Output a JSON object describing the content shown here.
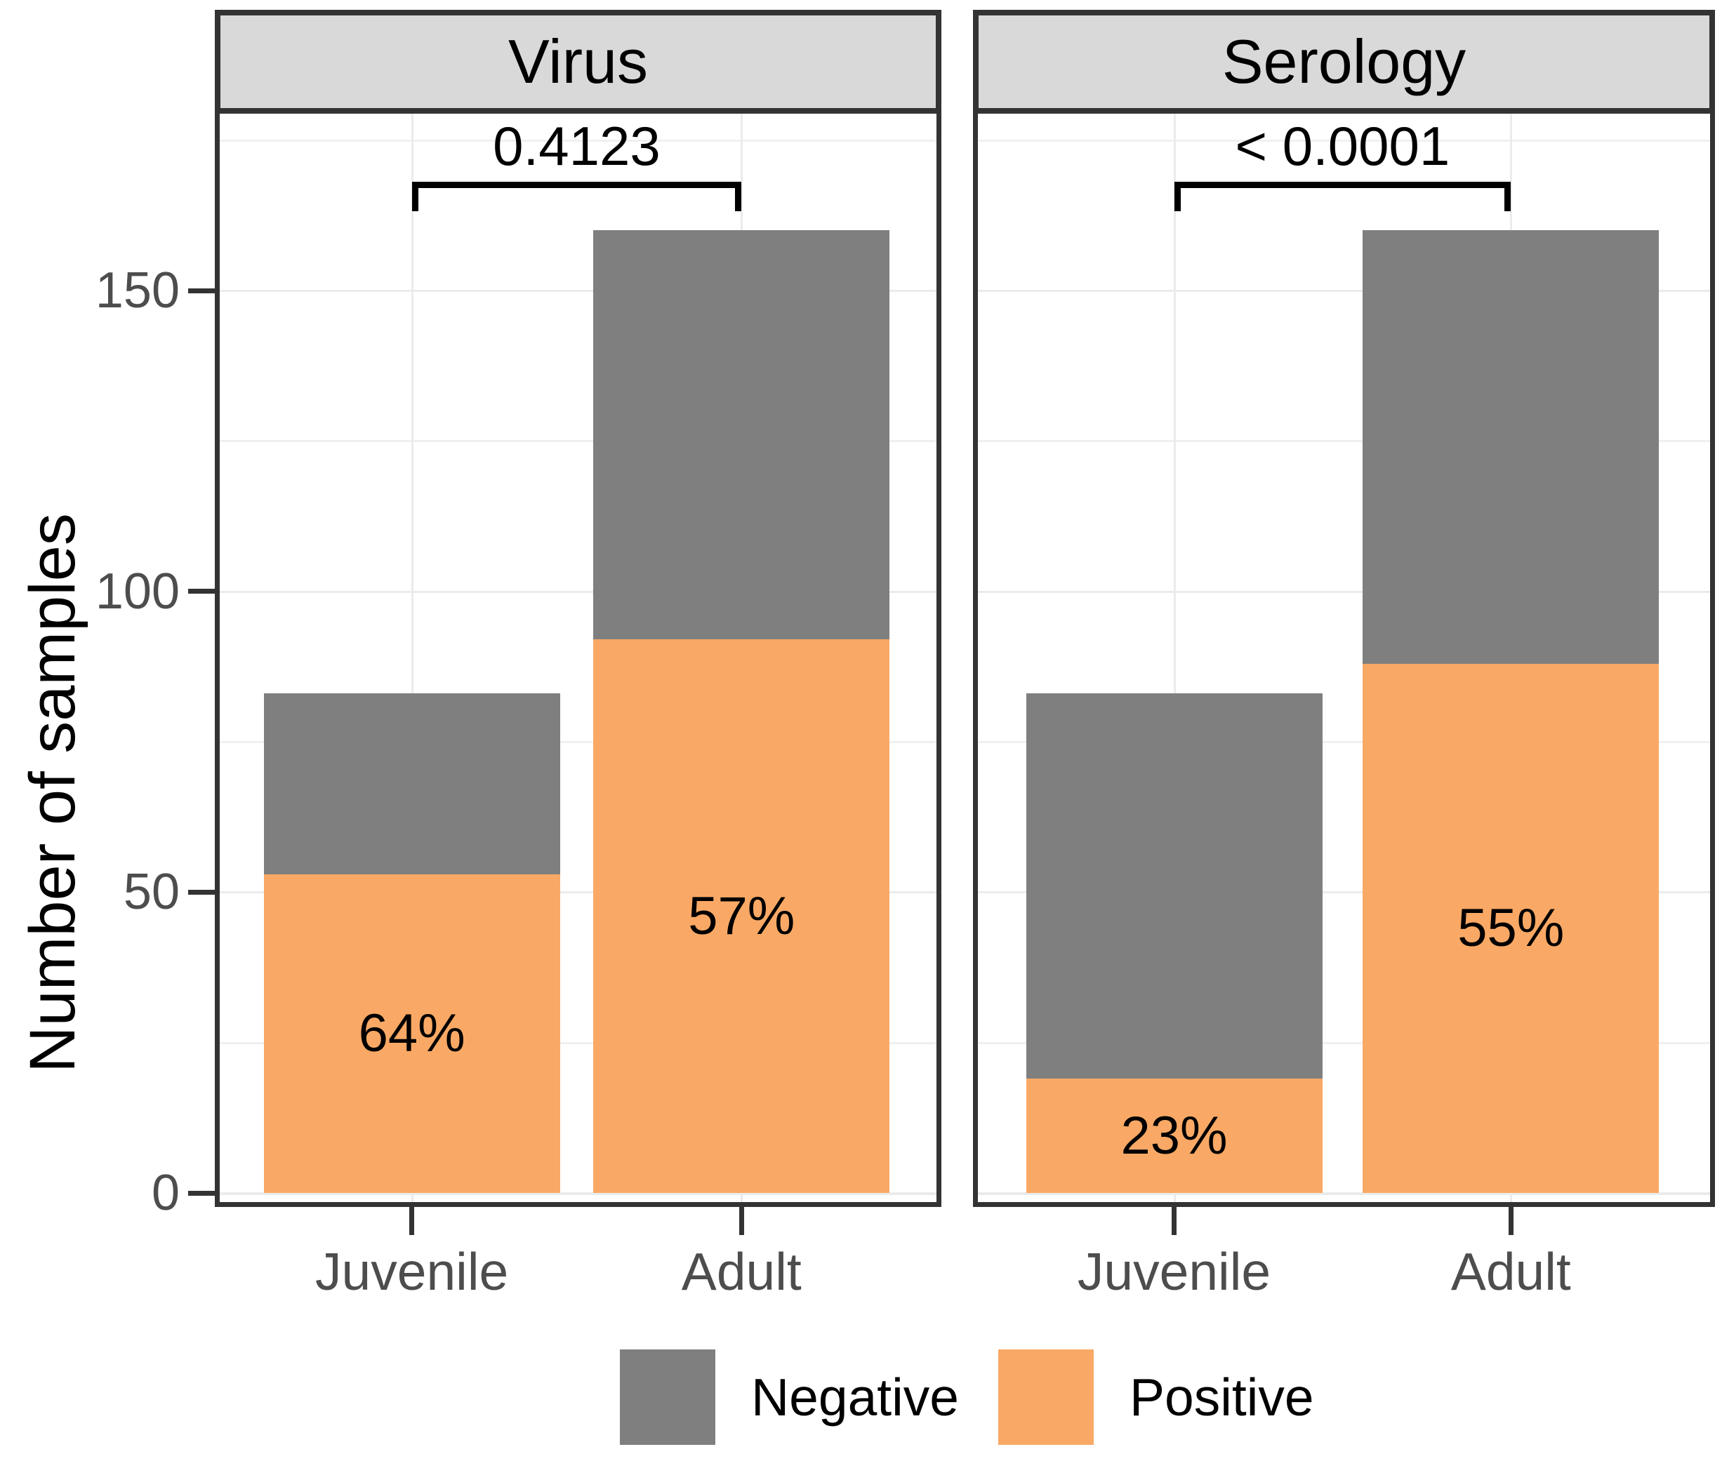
{
  "chart_data": {
    "type": "bar",
    "stacked": true,
    "orientation": "vertical",
    "ylabel": "Number of samples",
    "xlabel": "",
    "ylim": [
      0,
      179
    ],
    "yticks": [
      0,
      50,
      100,
      150
    ],
    "ytick_labels": [
      "0",
      "50",
      "100",
      "150"
    ],
    "yminor_ticks": [
      25,
      75,
      125,
      175
    ],
    "grid": true,
    "legend_position": "bottom",
    "legend": [
      {
        "label": "Negative",
        "color": "#7F7F7F"
      },
      {
        "label": "Positive",
        "color": "#F9A965"
      }
    ],
    "facets": [
      {
        "label": "Virus",
        "p_value": "0.4123",
        "categories": [
          "Juvenile",
          "Adult"
        ],
        "series": [
          {
            "name": "Positive",
            "values": [
              53,
              92
            ]
          },
          {
            "name": "Negative",
            "values": [
              30,
              68
            ]
          }
        ],
        "totals": [
          83,
          160
        ],
        "percent_labels": [
          "64%",
          "57%"
        ]
      },
      {
        "label": "Serology",
        "p_value": "< 0.0001",
        "categories": [
          "Juvenile",
          "Adult"
        ],
        "series": [
          {
            "name": "Positive",
            "values": [
              19,
              88
            ]
          },
          {
            "name": "Negative",
            "values": [
              64,
              72
            ]
          }
        ],
        "totals": [
          83,
          160
        ],
        "percent_labels": [
          "23%",
          "55%"
        ]
      }
    ],
    "colors": {
      "positive": "#F9A965",
      "negative": "#7F7F7F",
      "strip_background": "#D9D9D9",
      "panel_border": "#333333",
      "gridline": "#EBEBEB",
      "axis_text": "#4D4D4D",
      "annotation_text": "#000000"
    }
  }
}
